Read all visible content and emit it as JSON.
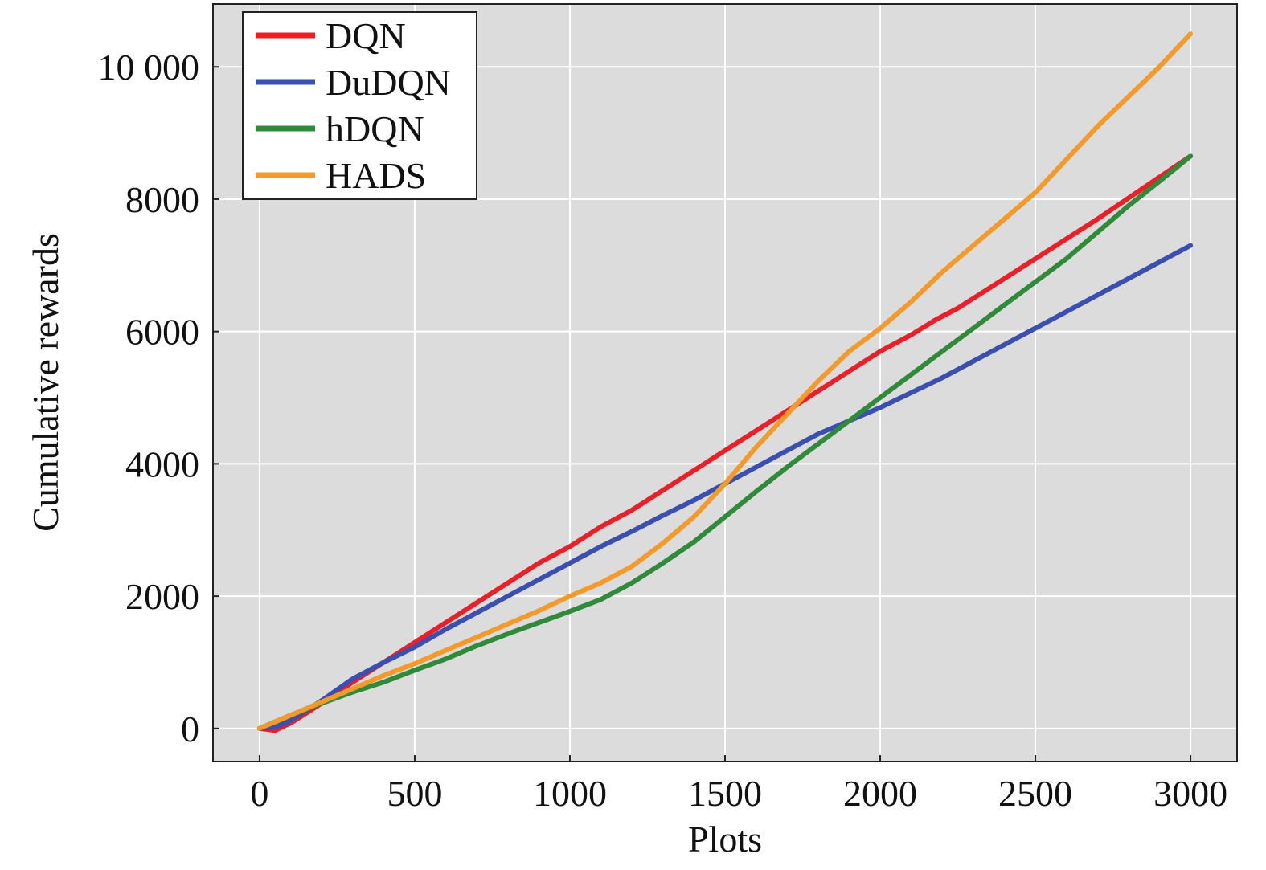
{
  "chart_data": {
    "type": "line",
    "xlabel": "Plots",
    "ylabel": "Cumulative rewards",
    "xlim": [
      -150,
      3150
    ],
    "ylim": [
      -500,
      10950
    ],
    "xticks": [
      0,
      500,
      1000,
      1500,
      2000,
      2500,
      3000
    ],
    "xtick_labels": [
      "0",
      "500",
      "1000",
      "1500",
      "2000",
      "2500",
      "3000"
    ],
    "yticks": [
      0,
      2000,
      4000,
      6000,
      8000,
      10000
    ],
    "ytick_labels": [
      "0",
      "2000",
      "4000",
      "6000",
      "8000",
      "10 000"
    ],
    "grid": true,
    "legend_position": "top-left",
    "background": "#dcdcdc",
    "series": [
      {
        "name": "DQN",
        "color": "#e8202a",
        "x": [
          0,
          50,
          100,
          200,
          300,
          400,
          500,
          600,
          700,
          800,
          900,
          1000,
          1100,
          1200,
          1300,
          1400,
          1500,
          1600,
          1700,
          1800,
          1900,
          2000,
          2100,
          2180,
          2250,
          2350,
          2500,
          2700,
          3000
        ],
        "y": [
          0,
          -30,
          80,
          380,
          700,
          1000,
          1300,
          1600,
          1900,
          2200,
          2500,
          2750,
          3050,
          3300,
          3600,
          3900,
          4200,
          4500,
          4800,
          5100,
          5400,
          5700,
          5950,
          6180,
          6350,
          6650,
          7100,
          7700,
          8650
        ]
      },
      {
        "name": "DuDQN",
        "color": "#3a4fb0",
        "x": [
          0,
          50,
          100,
          200,
          300,
          400,
          500,
          600,
          700,
          800,
          900,
          1000,
          1100,
          1200,
          1300,
          1400,
          1500,
          1600,
          1700,
          1800,
          1900,
          2000,
          2200,
          2400,
          2600,
          2800,
          3000
        ],
        "y": [
          0,
          20,
          120,
          420,
          750,
          1000,
          1230,
          1500,
          1750,
          2000,
          2250,
          2500,
          2750,
          2980,
          3220,
          3450,
          3700,
          3950,
          4200,
          4450,
          4650,
          4850,
          5300,
          5800,
          6300,
          6800,
          7300
        ]
      },
      {
        "name": "hDQN",
        "color": "#2f8a3a",
        "x": [
          0,
          100,
          200,
          300,
          400,
          500,
          600,
          700,
          800,
          900,
          1000,
          1100,
          1200,
          1300,
          1400,
          1500,
          1600,
          1700,
          1800,
          1900,
          2000,
          2100,
          2200,
          2300,
          2400,
          2500,
          2600,
          2700,
          2800,
          2900,
          3000
        ],
        "y": [
          0,
          200,
          380,
          550,
          700,
          880,
          1050,
          1250,
          1430,
          1600,
          1770,
          1950,
          2200,
          2500,
          2820,
          3200,
          3580,
          3950,
          4300,
          4650,
          5000,
          5350,
          5700,
          6050,
          6400,
          6750,
          7100,
          7500,
          7900,
          8270,
          8650
        ]
      },
      {
        "name": "HADS",
        "color": "#f39a2a",
        "x": [
          0,
          100,
          200,
          300,
          400,
          500,
          600,
          700,
          800,
          900,
          1000,
          1100,
          1200,
          1300,
          1400,
          1500,
          1600,
          1700,
          1800,
          1900,
          2000,
          2100,
          2200,
          2300,
          2400,
          2500,
          2600,
          2700,
          2800,
          2900,
          3000
        ],
        "y": [
          0,
          200,
          400,
          600,
          800,
          980,
          1180,
          1380,
          1580,
          1780,
          2000,
          2200,
          2450,
          2800,
          3200,
          3700,
          4250,
          4750,
          5250,
          5700,
          6050,
          6450,
          6900,
          7300,
          7700,
          8100,
          8600,
          9100,
          9550,
          10000,
          10500
        ]
      }
    ]
  }
}
